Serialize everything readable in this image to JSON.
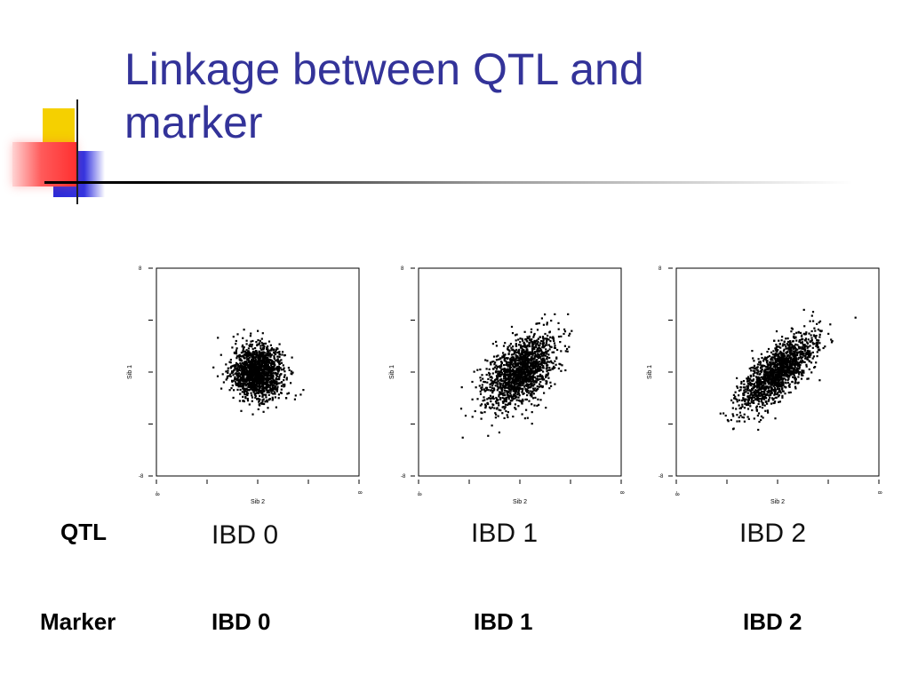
{
  "slide": {
    "title_line1": "Linkage between QTL and",
    "title_line2": "marker"
  },
  "rows": {
    "qtl_label": "QTL",
    "marker_label": "Marker",
    "marker_values": [
      "IBD 0",
      "IBD 1",
      "IBD 2"
    ]
  },
  "colors": {
    "title": "#333399",
    "points": "#000000",
    "accent_yellow": "#f5d000",
    "accent_blue": "#2a2ad8",
    "accent_red": "#ff4040"
  },
  "chart_data": [
    {
      "type": "scatter",
      "title": "IBD 0",
      "xlabel": "Sib 2",
      "ylabel": "Sib 1",
      "xlim": [
        -8,
        8
      ],
      "ylim": [
        -8,
        8
      ],
      "x_ticks": [
        "-8",
        "8"
      ],
      "y_ticks": [
        "8",
        "-8"
      ],
      "correlation": 0.0,
      "n_points": 1500,
      "spread_sd": 1.0,
      "grid": false,
      "legend": "none"
    },
    {
      "type": "scatter",
      "title": "IBD 1",
      "xlabel": "Sib 2",
      "ylabel": "Sib 1",
      "xlim": [
        -8,
        8
      ],
      "ylim": [
        -8,
        8
      ],
      "x_ticks": [
        "-8",
        "8"
      ],
      "y_ticks": [
        "8",
        "-8"
      ],
      "correlation": 0.5,
      "n_points": 1500,
      "spread_sd": 1.4,
      "grid": false,
      "legend": "none"
    },
    {
      "type": "scatter",
      "title": "IBD 2",
      "xlabel": "Sib 2",
      "ylabel": "Sib 1",
      "xlim": [
        -8,
        8
      ],
      "ylim": [
        -8,
        8
      ],
      "x_ticks": [
        "-8",
        "8"
      ],
      "y_ticks": [
        "8",
        "-8"
      ],
      "correlation": 0.75,
      "n_points": 1500,
      "spread_sd": 1.5,
      "grid": false,
      "legend": "none"
    }
  ]
}
